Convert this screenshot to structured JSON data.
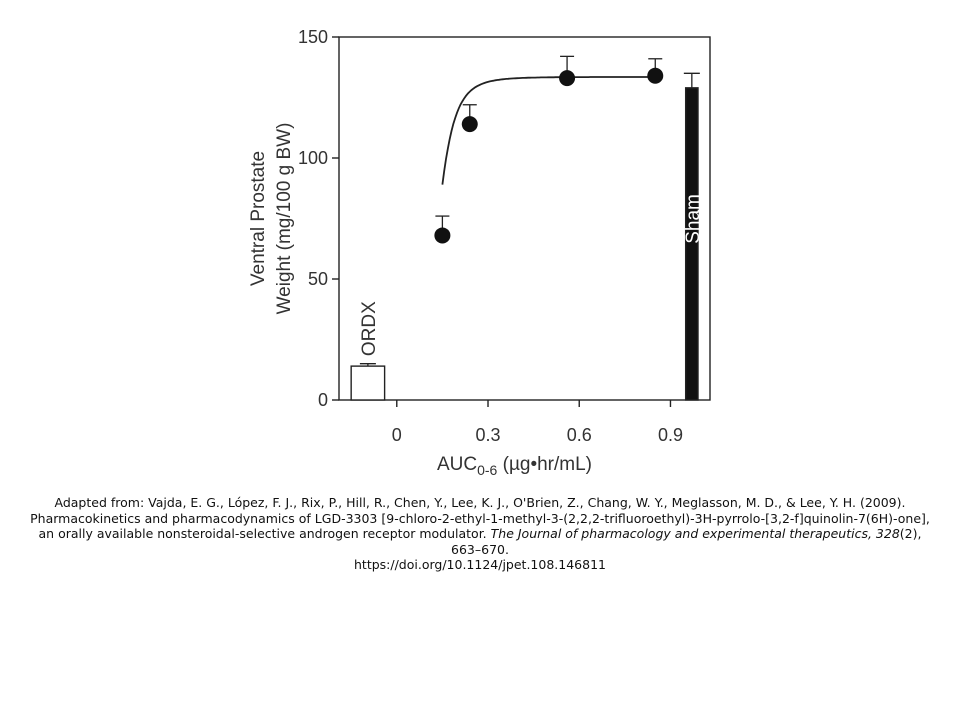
{
  "chart_data": {
    "type": "scatter",
    "xlabel_main": "AUC",
    "xlabel_sub": "0-6",
    "xlabel_unit": " (µg•hr/mL)",
    "ylabel_line1": "Ventral Prostate",
    "ylabel_line2": "Weight (mg/100 g BW)",
    "xlim": [
      -0.19,
      1.03
    ],
    "ylim": [
      0,
      150
    ],
    "x_ticks": [
      0,
      0.3,
      0.6,
      0.9
    ],
    "x_tick_labels": [
      "0",
      "0.3",
      "0.6",
      "0.9"
    ],
    "y_ticks": [
      0,
      50,
      100,
      150
    ],
    "y_tick_labels": [
      "0",
      "50",
      "100",
      "150"
    ],
    "series": [
      {
        "marker": "filled-circle",
        "x": [
          0.15,
          0.24,
          0.56,
          0.85
        ],
        "y": [
          68,
          114,
          133,
          134
        ],
        "error": [
          8,
          8,
          9,
          7
        ]
      }
    ],
    "fit_curve": {
      "type": "sigmoid",
      "top": 133.5,
      "ec50": 0.15,
      "hill_slope": 5
    },
    "bars": [
      {
        "label": "ORDX",
        "x": [
          -0.15,
          -0.04
        ],
        "value": 14,
        "error": 1,
        "fill": "#ffffff"
      },
      {
        "label": "Sham",
        "x": [
          0.95,
          1.06
        ],
        "value": 129,
        "error": 6,
        "fill": "#111111"
      }
    ]
  },
  "caption": {
    "lead": "Adapted from: Vajda, E. G., López, F. J., Rix, P., Hill, R., Chen, Y., Lee, K. J., O'Brien, Z., Chang, W. Y., Meglasson, M. D., & Lee, Y. H. (2009). Pharmacokinetics and pharmacodynamics of LGD-3303 [9-chloro-2-ethyl-1-methyl-3-(2,2,2-trifluoroethyl)-3H-pyrrolo-[3,2-f]quinolin-7(6H)-one], an orally available nonsteroidal-selective androgen receptor modulator. ",
    "journal": "The Journal of pharmacology and experimental therapeutics, 328",
    "issue_pages": "(2), 663–670.",
    "doi": "https://doi.org/10.1124/jpet.108.146811"
  }
}
